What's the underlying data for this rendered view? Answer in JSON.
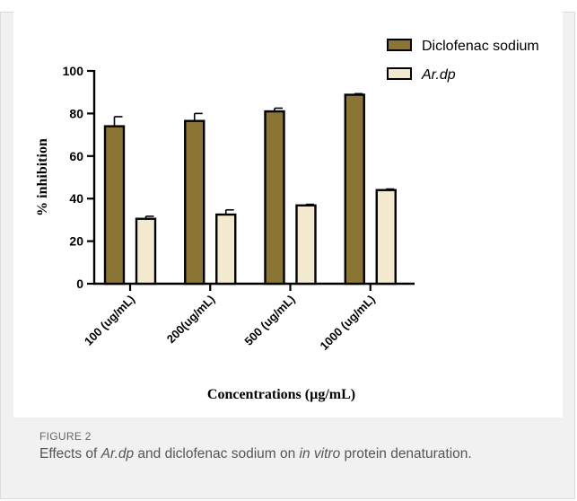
{
  "figure": {
    "label": "FIGURE 2",
    "caption": {
      "p1": "Effects of ",
      "i1": "Ar.dp",
      "p2": " and diclofenac sodium on ",
      "i2": "in vitro",
      "p3": " protein denaturation."
    }
  },
  "chart_data": {
    "type": "bar",
    "title": "",
    "xlabel": "Concentrations (µg/mL)",
    "ylabel": "% inhibition",
    "categories": [
      "100 (ug/mL)",
      "200(ug/mL)",
      "500 (ug/mL)",
      "1000 (ug/mL)"
    ],
    "ylim": [
      0,
      100
    ],
    "yticks": [
      0,
      20,
      40,
      60,
      80,
      100
    ],
    "legend_position": "top-right",
    "grid": false,
    "series": [
      {
        "name": "Diclofenac sodium",
        "color": "#8b7535",
        "values": [
          74,
          76.5,
          81,
          88.8
        ],
        "errors": [
          4.5,
          3.5,
          1.5,
          0.5
        ]
      },
      {
        "name": "Ar.dp",
        "name_italic": true,
        "color": "#f3e9cf",
        "values": [
          30.5,
          32.5,
          36.8,
          44
        ],
        "errors": [
          1.2,
          2.2,
          0.5,
          0.5
        ]
      }
    ]
  }
}
